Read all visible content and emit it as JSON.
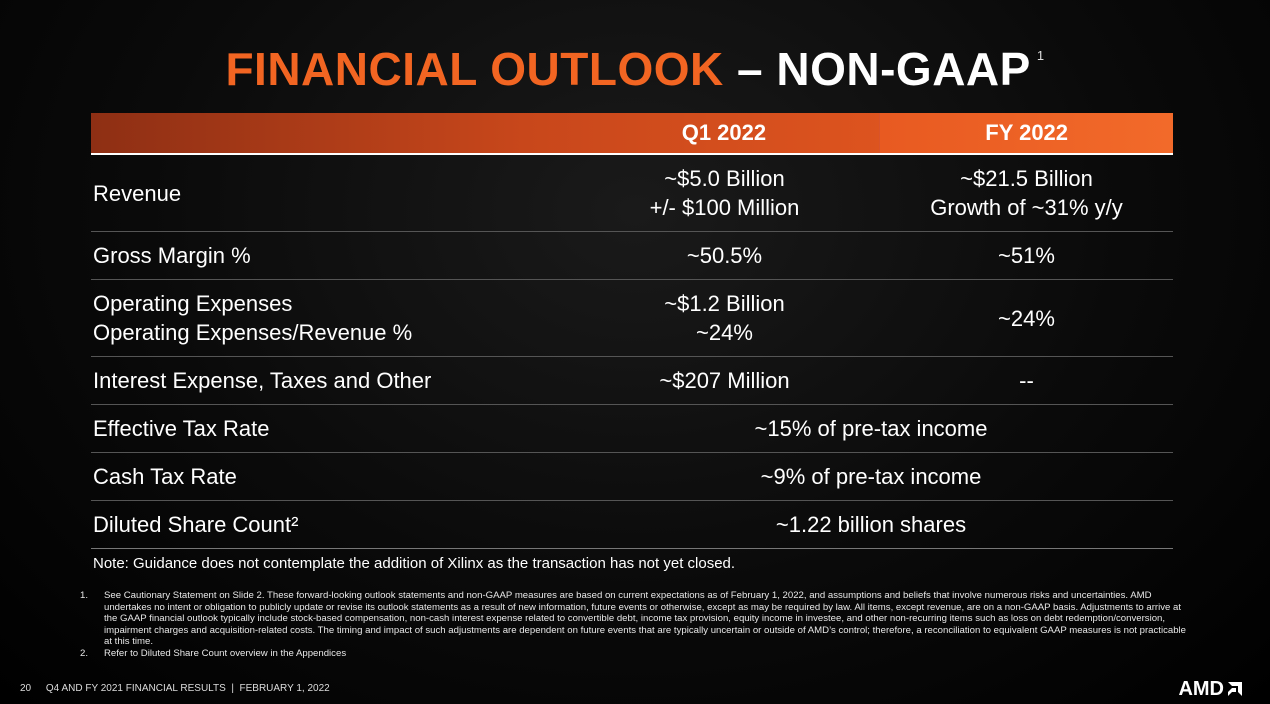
{
  "title": {
    "main": "FINANCIAL OUTLOOK",
    "sub": "– NON-GAAP",
    "sup": "1"
  },
  "columns": {
    "q1": "Q1 2022",
    "fy": "FY 2022"
  },
  "rows": {
    "revenue": {
      "label": "Revenue",
      "q1_line1": "~$5.0 Billion",
      "q1_line2": "+/- $100 Million",
      "fy_line1": "~$21.5 Billion",
      "fy_line2": "Growth of ~31% y/y"
    },
    "gross_margin": {
      "label": "Gross Margin %",
      "q1": "~50.5%",
      "fy": "~51%"
    },
    "opex": {
      "label_line1": "Operating Expenses",
      "label_line2": "Operating Expenses/Revenue %",
      "q1_line1": "~$1.2 Billion",
      "q1_line2": "~24%",
      "fy": "~24%"
    },
    "interest": {
      "label": "Interest Expense, Taxes and Other",
      "q1": "~$207 Million",
      "fy": "--"
    },
    "effective_tax": {
      "label": "Effective Tax Rate",
      "value": "~15% of pre-tax income"
    },
    "cash_tax": {
      "label": "Cash Tax Rate",
      "value": "~9% of pre-tax income"
    },
    "diluted_shares": {
      "label": "Diluted Share Count²",
      "value": "~1.22 billion shares"
    }
  },
  "note": "Note: Guidance does not contemplate the addition of Xilinx as the transaction has not yet closed.",
  "footnotes": [
    {
      "num": "1.",
      "text": "See Cautionary Statement on Slide 2. These forward-looking outlook statements and non-GAAP measures are based on current expectations as of February 1, 2022, and assumptions and beliefs that involve numerous risks and uncertainties. AMD undertakes no intent or obligation to publicly update or revise its outlook statements as a result of new information, future events or otherwise, except as may be required by law. All items, except revenue, are on a non-GAAP basis. Adjustments to arrive at the GAAP financial outlook typically include stock-based compensation, non-cash interest expense related to convertible debt, income tax provision, equity income in investee, and other non-recurring items such as loss on debt redemption/conversion, impairment charges and acquisition-related costs. The timing and impact of such adjustments are dependent on future events that are typically uncertain or outside of AMD’s control; therefore, a reconciliation to equivalent GAAP measures is not practicable at this time."
    },
    {
      "num": "2.",
      "text": "Refer to Diluted Share Count overview in the Appendices"
    }
  ],
  "footer": {
    "page": "20",
    "text": "Q4 AND FY 2021 FINANCIAL RESULTS  |  FEBRUARY 1, 2022",
    "logo": "AMD"
  }
}
